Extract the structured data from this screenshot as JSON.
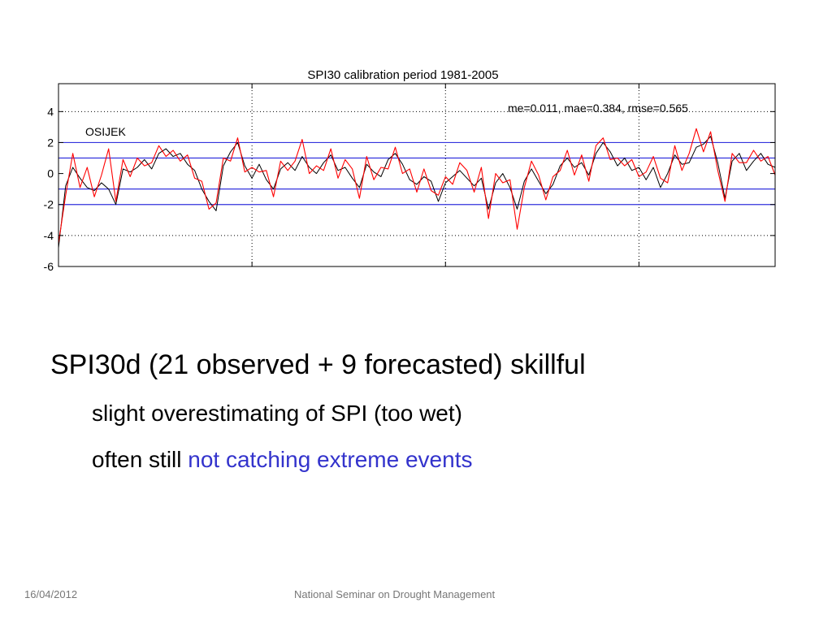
{
  "slide": {
    "main_bullet": "SPI30d (21 observed + 9 forecasted) skillful",
    "sub_bullet_1": "slight overestimating of SPI (too wet)",
    "sub_bullet_2_plain": "often still ",
    "sub_bullet_2_highlight": "not catching extreme events",
    "highlight_color": "#3333cc",
    "footer_date": "16/04/2012",
    "footer_center": "National Seminar on Drought Management"
  },
  "chart_data": {
    "type": "line",
    "title": "SPI30 calibration period 1981-2005",
    "station_label": "OSIJEK",
    "stats_annotation": "me=0.011, mae=0.384, rmse=0.565",
    "xlabel": "",
    "ylabel": "",
    "xlim": [
      0,
      1
    ],
    "ylim": [
      -6,
      6
    ],
    "y_ticks": [
      4,
      2,
      0,
      -2,
      -4,
      -6
    ],
    "x_gridlines": [
      0.27,
      0.54,
      0.81
    ],
    "y_gridlines": [
      4,
      -4
    ],
    "threshold_lines": [
      2,
      1,
      -1,
      -2
    ],
    "threshold_color": "#3333dd",
    "grid": "dotted",
    "legend": "none",
    "series": [
      {
        "color": "#000000",
        "x": [
          0.0,
          0.01,
          0.02,
          0.03,
          0.04,
          0.05,
          0.06,
          0.07,
          0.08,
          0.09,
          0.1,
          0.11,
          0.12,
          0.13,
          0.14,
          0.15,
          0.16,
          0.17,
          0.18,
          0.19,
          0.2,
          0.21,
          0.22,
          0.23,
          0.24,
          0.25,
          0.26,
          0.27,
          0.28,
          0.29,
          0.3,
          0.31,
          0.32,
          0.33,
          0.34,
          0.35,
          0.36,
          0.37,
          0.38,
          0.39,
          0.4,
          0.41,
          0.42,
          0.43,
          0.44,
          0.45,
          0.46,
          0.47,
          0.48,
          0.49,
          0.5,
          0.51,
          0.52,
          0.53,
          0.54,
          0.55,
          0.56,
          0.57,
          0.58,
          0.59,
          0.6,
          0.61,
          0.62,
          0.63,
          0.64,
          0.65,
          0.66,
          0.67,
          0.68,
          0.69,
          0.7,
          0.71,
          0.72,
          0.73,
          0.74,
          0.75,
          0.76,
          0.77,
          0.78,
          0.79,
          0.8,
          0.81,
          0.82,
          0.83,
          0.84,
          0.85,
          0.86,
          0.87,
          0.88,
          0.89,
          0.9,
          0.91,
          0.92,
          0.93,
          0.94,
          0.95,
          0.96,
          0.97,
          0.98,
          0.99,
          1.0
        ],
        "y": [
          -4.8,
          -0.8,
          0.4,
          -0.3,
          -0.9,
          -1.1,
          -0.6,
          -1.0,
          -2.0,
          0.3,
          0.1,
          0.4,
          0.9,
          0.3,
          1.3,
          1.6,
          1.1,
          1.3,
          0.6,
          0.2,
          -1.0,
          -1.8,
          -2.4,
          0.5,
          1.4,
          2.0,
          0.5,
          -0.3,
          0.6,
          -0.4,
          -1.0,
          0.3,
          0.7,
          0.2,
          1.1,
          0.4,
          0.0,
          0.7,
          1.2,
          0.2,
          0.4,
          -0.3,
          -0.9,
          0.6,
          0.1,
          -0.2,
          0.9,
          1.3,
          0.6,
          -0.4,
          -0.7,
          -0.2,
          -0.5,
          -1.8,
          -0.6,
          -0.2,
          0.2,
          -0.3,
          -0.8,
          -0.3,
          -2.3,
          -0.6,
          0.0,
          -0.9,
          -2.3,
          -0.5,
          0.3,
          -0.5,
          -1.3,
          -0.7,
          0.5,
          1.0,
          0.4,
          0.7,
          -0.1,
          1.3,
          2.0,
          1.4,
          0.5,
          1.0,
          0.2,
          0.4,
          -0.4,
          0.4,
          -0.9,
          0.0,
          1.2,
          0.6,
          0.7,
          1.7,
          1.9,
          2.4,
          0.7,
          -1.6,
          0.8,
          1.3,
          0.2,
          0.8,
          1.3,
          0.6,
          0.4
        ],
        "name": ""
      },
      {
        "color": "#ff0000",
        "x": [
          0.0,
          0.01,
          0.02,
          0.03,
          0.04,
          0.05,
          0.06,
          0.07,
          0.08,
          0.09,
          0.1,
          0.11,
          0.12,
          0.13,
          0.14,
          0.15,
          0.16,
          0.17,
          0.18,
          0.19,
          0.2,
          0.21,
          0.22,
          0.23,
          0.24,
          0.25,
          0.26,
          0.27,
          0.28,
          0.29,
          0.3,
          0.31,
          0.32,
          0.33,
          0.34,
          0.35,
          0.36,
          0.37,
          0.38,
          0.39,
          0.4,
          0.41,
          0.42,
          0.43,
          0.44,
          0.45,
          0.46,
          0.47,
          0.48,
          0.49,
          0.5,
          0.51,
          0.52,
          0.53,
          0.54,
          0.55,
          0.56,
          0.57,
          0.58,
          0.59,
          0.6,
          0.61,
          0.62,
          0.63,
          0.64,
          0.65,
          0.66,
          0.67,
          0.68,
          0.69,
          0.7,
          0.71,
          0.72,
          0.73,
          0.74,
          0.75,
          0.76,
          0.77,
          0.78,
          0.79,
          0.8,
          0.81,
          0.82,
          0.83,
          0.84,
          0.85,
          0.86,
          0.87,
          0.88,
          0.89,
          0.9,
          0.91,
          0.92,
          0.93,
          0.94,
          0.95,
          0.96,
          0.97,
          0.98,
          0.99,
          1.0
        ],
        "y": [
          -4.5,
          -1.4,
          1.3,
          -0.9,
          0.4,
          -1.5,
          -0.1,
          1.6,
          -1.8,
          0.9,
          -0.2,
          1.0,
          0.5,
          0.7,
          1.8,
          1.1,
          1.5,
          0.8,
          1.2,
          -0.3,
          -0.5,
          -2.3,
          -1.9,
          1.0,
          0.8,
          2.3,
          0.1,
          0.4,
          0.1,
          0.2,
          -1.5,
          0.8,
          0.2,
          0.8,
          2.2,
          0.0,
          0.5,
          0.2,
          1.6,
          -0.3,
          0.9,
          0.3,
          -1.6,
          1.1,
          -0.4,
          0.4,
          0.3,
          1.7,
          0.0,
          0.3,
          -1.2,
          0.3,
          -1.1,
          -1.4,
          -0.2,
          -0.7,
          0.7,
          0.2,
          -1.2,
          0.4,
          -2.9,
          0.0,
          -0.6,
          -0.4,
          -3.6,
          -0.9,
          0.8,
          -0.1,
          -1.7,
          -0.2,
          0.2,
          1.5,
          -0.1,
          1.2,
          -0.5,
          1.8,
          2.3,
          0.9,
          1.0,
          0.5,
          0.9,
          -0.2,
          0.1,
          1.1,
          -0.3,
          -0.6,
          1.8,
          0.2,
          1.3,
          2.9,
          1.4,
          2.7,
          0.2,
          -1.8,
          1.3,
          0.7,
          0.7,
          1.5,
          0.8,
          1.1,
          -0.1
        ],
        "name": ""
      }
    ]
  }
}
